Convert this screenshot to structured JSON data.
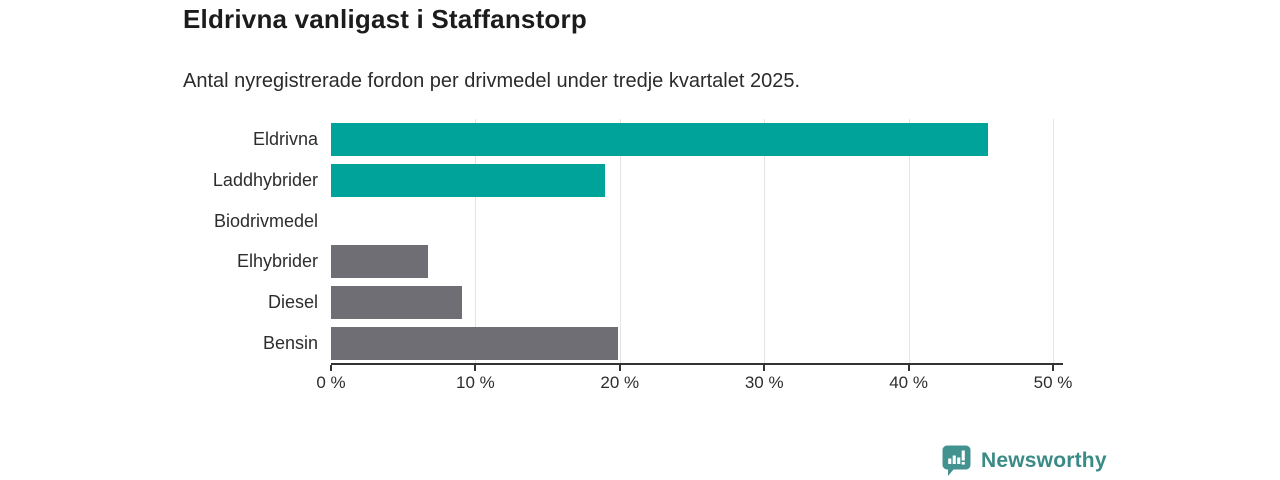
{
  "header": {
    "title": "Eldrivna vanligast i Staffanstorp",
    "subtitle": "Antal nyregistrerade fordon per drivmedel under tredje kvartalet 2025."
  },
  "chart_data": {
    "type": "bar",
    "orientation": "horizontal",
    "title": "Eldrivna vanligast i Staffanstorp",
    "subtitle": "Antal nyregistrerade fordon per drivmedel under tredje kvartalet 2025.",
    "categories": [
      "Eldrivna",
      "Laddhybrider",
      "Biodrivmedel",
      "Elhybrider",
      "Diesel",
      "Bensin"
    ],
    "values": [
      45.5,
      19.0,
      0,
      6.7,
      9.1,
      19.9
    ],
    "unit": "%",
    "xlim": [
      0,
      50
    ],
    "x_ticks": [
      "0 %",
      "10 %",
      "20 %",
      "30 %",
      "40 %",
      "50 %"
    ],
    "x_tick_values": [
      0,
      10,
      20,
      30,
      40,
      50
    ],
    "bar_colors": [
      "#00a39a",
      "#00a39a",
      "#00a39a",
      "#6e6e74",
      "#6e6e74",
      "#6e6e74"
    ],
    "highlight_color": "#00a39a",
    "default_color": "#6e6e74",
    "grid": true,
    "gridline_color": "#e4e4e4",
    "axis_color": "#333333",
    "legend": null
  },
  "footer": {
    "brand": "Newsworthy",
    "brand_color": "#3a8b86",
    "icon_color": "#429390",
    "logo_icon": "bar-chart-speech-bubble-icon"
  }
}
